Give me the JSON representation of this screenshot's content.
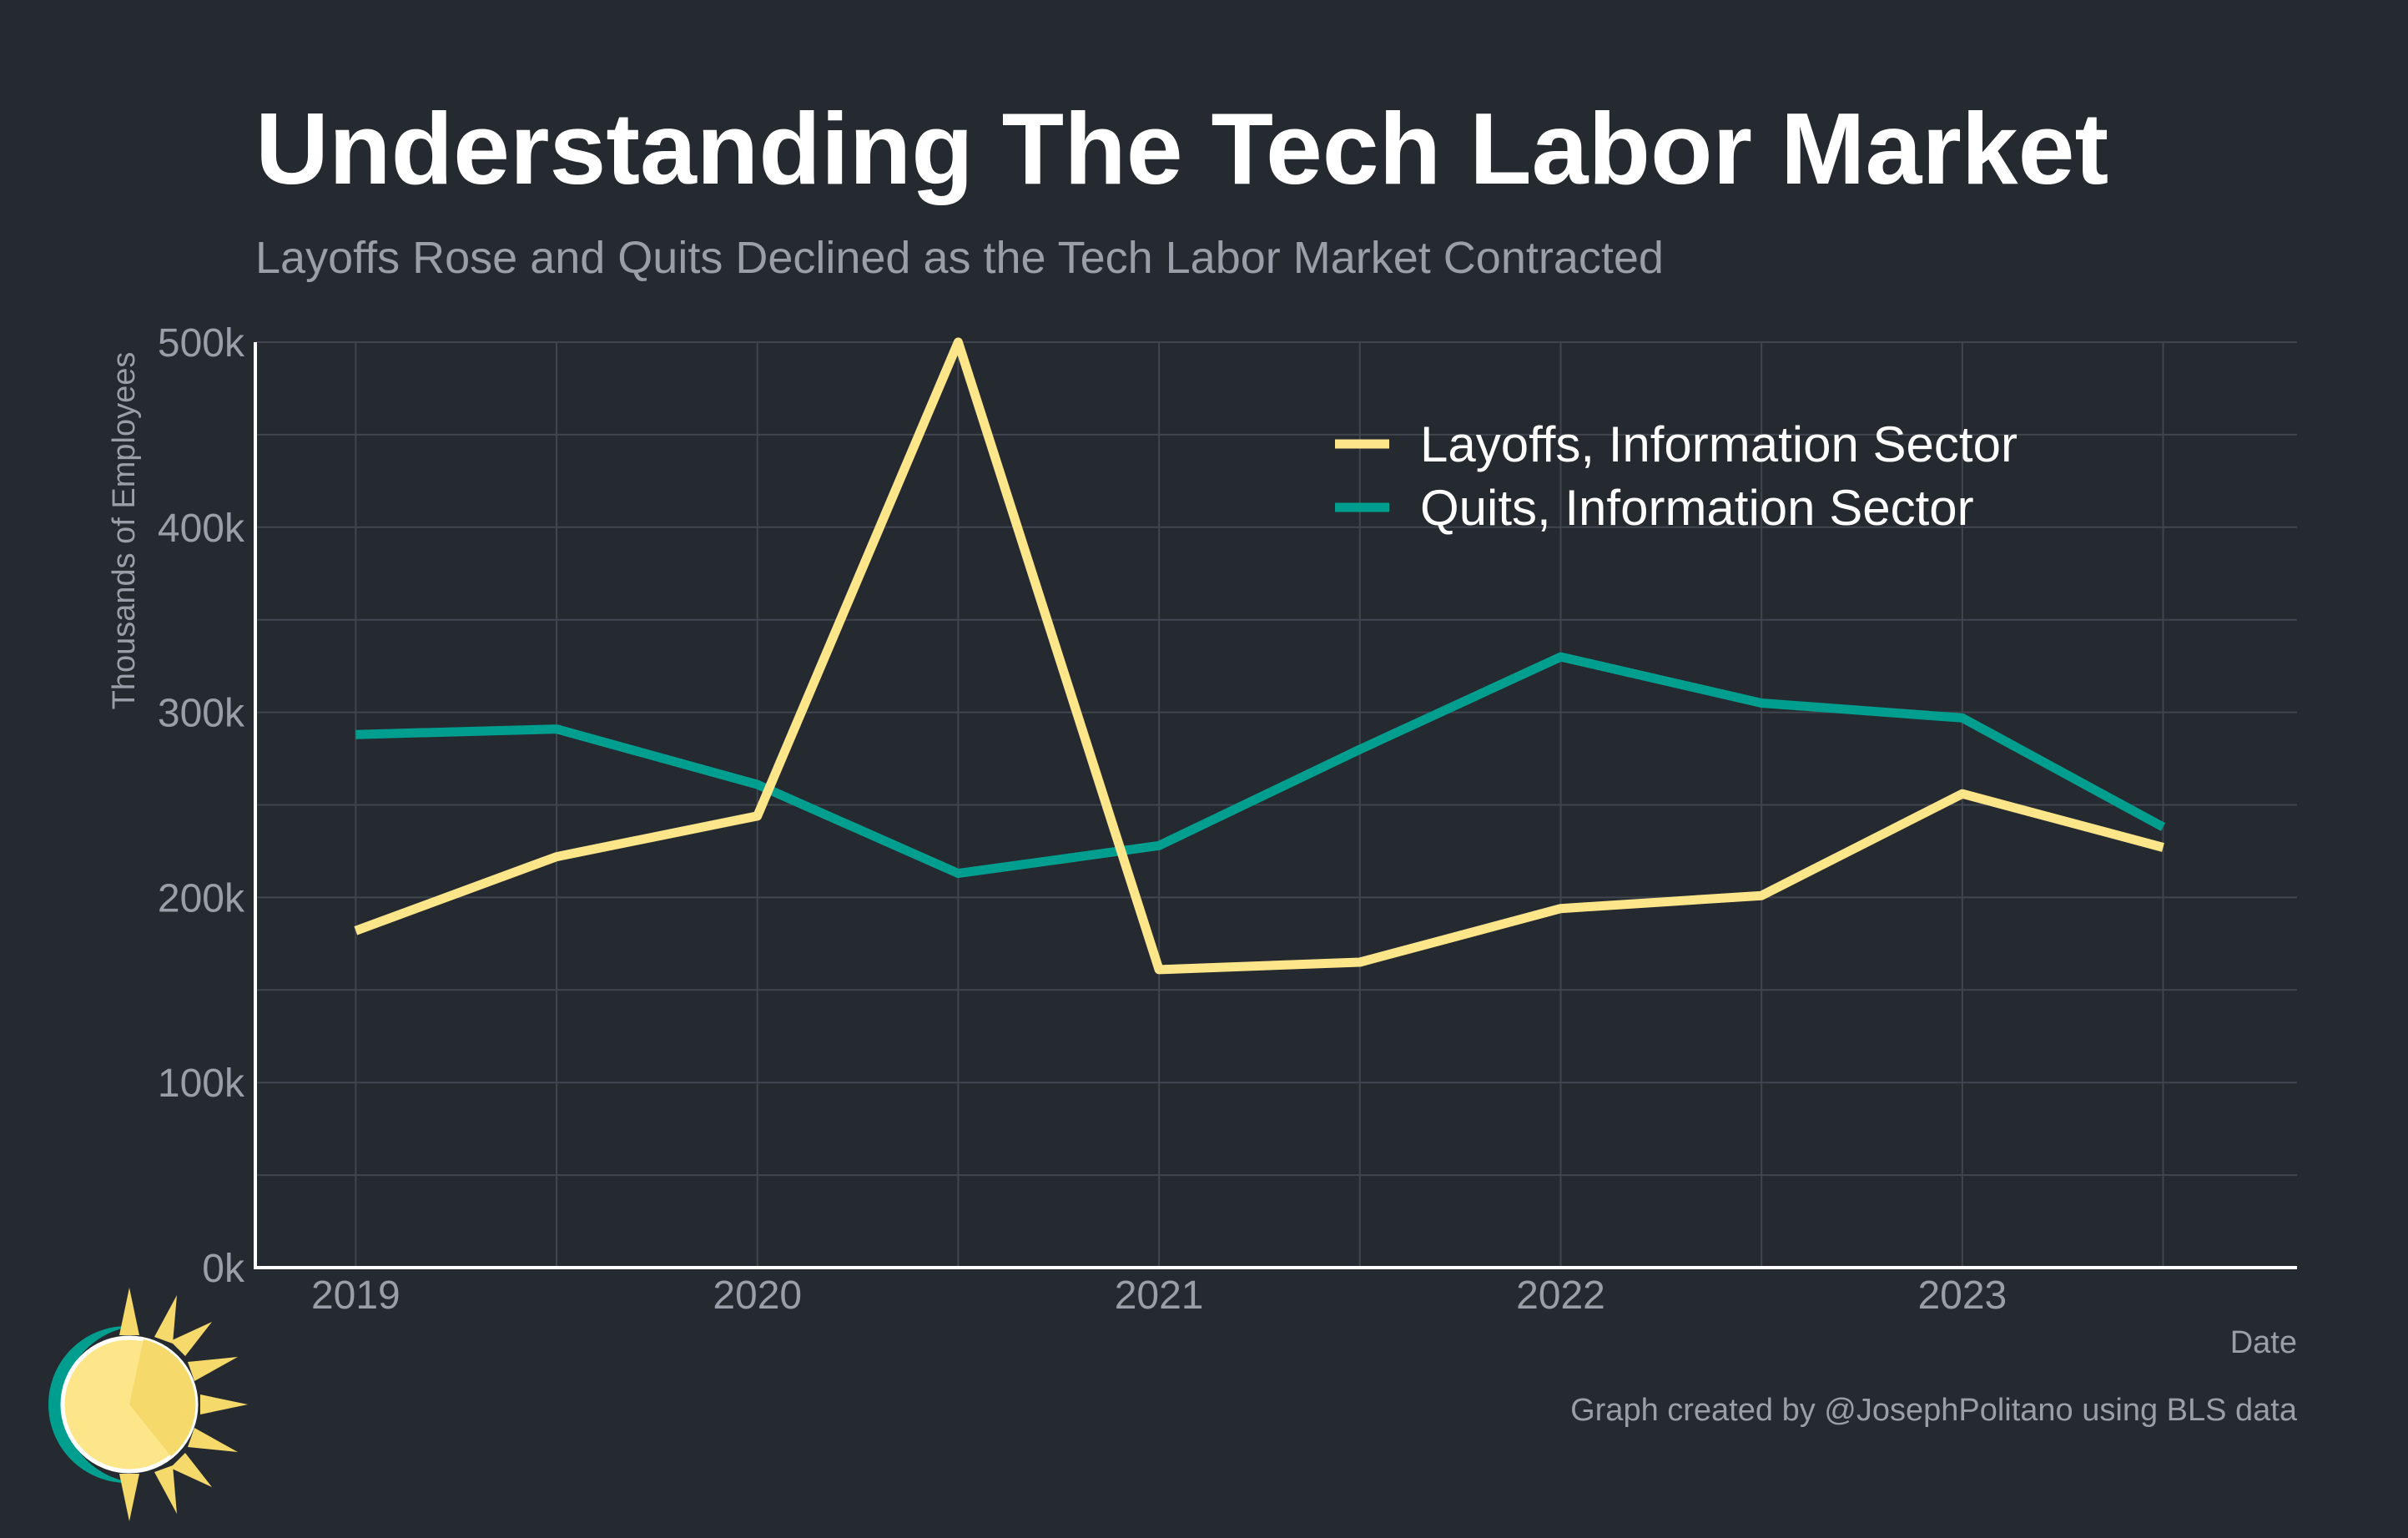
{
  "chart_data": {
    "type": "line",
    "title": "Understanding The Tech Labor Market",
    "subtitle": "Layoffs Rose and Quits Declined as the Tech Labor Market Contracted",
    "xlabel": "Date",
    "ylabel": "Thousands of Employees",
    "x_ticks": [
      "2019",
      "2020",
      "2021",
      "2022",
      "2023"
    ],
    "y_ticks": [
      "0k",
      "100k",
      "200k",
      "300k",
      "400k",
      "500k"
    ],
    "ylim": [
      0,
      500
    ],
    "xlim": [
      "2018-10",
      "2023-11"
    ],
    "grid": true,
    "legend_position": "top-right",
    "x": [
      "2019-01",
      "2019-07",
      "2020-01",
      "2020-07",
      "2021-01",
      "2021-07",
      "2022-01",
      "2022-07",
      "2023-01",
      "2023-07"
    ],
    "series": [
      {
        "name": "Layoffs, Information Sector",
        "color": "#FDE68A",
        "values": [
          182,
          222,
          244,
          500,
          161,
          165,
          194,
          201,
          256,
          227
        ]
      },
      {
        "name": "Quits, Information Sector",
        "color": "#009E8E",
        "values": [
          288,
          291,
          261,
          213,
          228,
          280,
          330,
          305,
          297,
          238
        ]
      }
    ],
    "credit": "Graph created by @JosephPolitano using BLS data"
  },
  "colors": {
    "background": "#252930",
    "title": "#FFFFFF",
    "muted_text": "#9A9EA6",
    "grid": "#40454E",
    "axis": "#FFFFFF",
    "logo_ring": "#009E8E",
    "logo_sun": "#FDE68A",
    "logo_rays": "#F5D96A"
  },
  "logo": {
    "icon": "sun-logo-icon"
  }
}
